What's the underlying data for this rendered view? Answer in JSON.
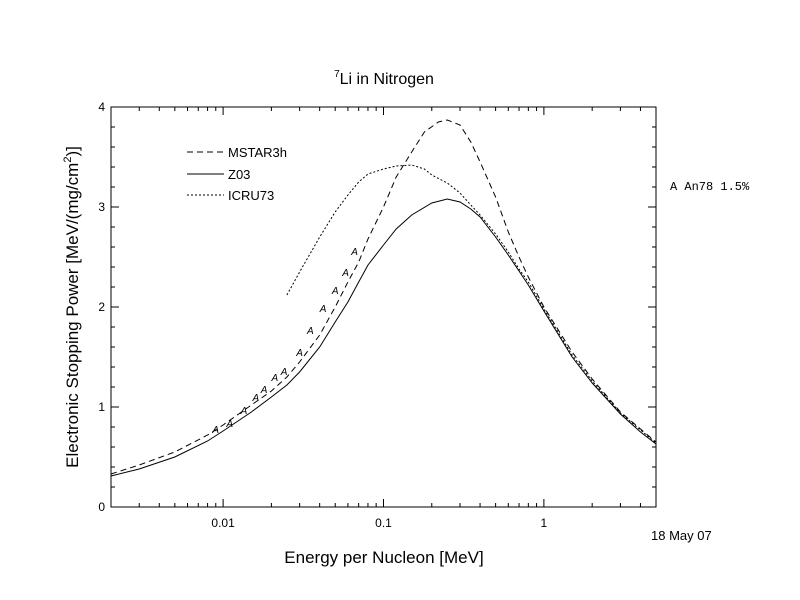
{
  "chart_data": {
    "type": "line",
    "title_sup": "7",
    "title_rest": "Li in Nitrogen",
    "xlabel": "Energy per Nucleon [MeV]",
    "ylabel_main": "Electronic Stopping Power [MeV/(mg/cm",
    "ylabel_sup": "2",
    "ylabel_end": ")]",
    "x_scale": "log",
    "xlim": [
      0.002,
      5.0
    ],
    "ylim": [
      0,
      4
    ],
    "x_ticks": [
      {
        "value": 0.01,
        "label": "0.01"
      },
      {
        "value": 0.1,
        "label": "0.1"
      },
      {
        "value": 1,
        "label": "1"
      }
    ],
    "y_ticks": [
      {
        "value": 0,
        "label": "0"
      },
      {
        "value": 1,
        "label": "1"
      },
      {
        "value": 2,
        "label": "2"
      },
      {
        "value": 3,
        "label": "3"
      },
      {
        "value": 4,
        "label": "4"
      }
    ],
    "grid": false,
    "legend_position": "top-left",
    "series": [
      {
        "name": "MSTAR3h",
        "style": "dashed",
        "points": [
          [
            0.002,
            0.33
          ],
          [
            0.003,
            0.42
          ],
          [
            0.005,
            0.55
          ],
          [
            0.008,
            0.72
          ],
          [
            0.01,
            0.82
          ],
          [
            0.015,
            1.02
          ],
          [
            0.02,
            1.16
          ],
          [
            0.025,
            1.3
          ],
          [
            0.03,
            1.45
          ],
          [
            0.04,
            1.72
          ],
          [
            0.05,
            2.0
          ],
          [
            0.06,
            2.25
          ],
          [
            0.07,
            2.45
          ],
          [
            0.08,
            2.68
          ],
          [
            0.1,
            3.0
          ],
          [
            0.12,
            3.3
          ],
          [
            0.15,
            3.55
          ],
          [
            0.18,
            3.75
          ],
          [
            0.22,
            3.85
          ],
          [
            0.25,
            3.87
          ],
          [
            0.3,
            3.82
          ],
          [
            0.35,
            3.65
          ],
          [
            0.4,
            3.45
          ],
          [
            0.5,
            3.1
          ],
          [
            0.6,
            2.75
          ],
          [
            0.7,
            2.5
          ],
          [
            0.8,
            2.3
          ],
          [
            1.0,
            2.0
          ],
          [
            1.5,
            1.55
          ],
          [
            2.0,
            1.28
          ],
          [
            3.0,
            0.95
          ],
          [
            4.0,
            0.78
          ],
          [
            5.0,
            0.65
          ]
        ]
      },
      {
        "name": "Z03",
        "style": "solid",
        "points": [
          [
            0.002,
            0.31
          ],
          [
            0.003,
            0.38
          ],
          [
            0.005,
            0.5
          ],
          [
            0.008,
            0.66
          ],
          [
            0.01,
            0.76
          ],
          [
            0.015,
            0.95
          ],
          [
            0.02,
            1.1
          ],
          [
            0.025,
            1.22
          ],
          [
            0.03,
            1.35
          ],
          [
            0.04,
            1.6
          ],
          [
            0.05,
            1.85
          ],
          [
            0.06,
            2.05
          ],
          [
            0.07,
            2.25
          ],
          [
            0.08,
            2.42
          ],
          [
            0.1,
            2.62
          ],
          [
            0.12,
            2.78
          ],
          [
            0.15,
            2.92
          ],
          [
            0.2,
            3.04
          ],
          [
            0.25,
            3.08
          ],
          [
            0.3,
            3.05
          ],
          [
            0.35,
            2.98
          ],
          [
            0.4,
            2.9
          ],
          [
            0.5,
            2.7
          ],
          [
            0.6,
            2.52
          ],
          [
            0.7,
            2.36
          ],
          [
            0.8,
            2.22
          ],
          [
            1.0,
            1.96
          ],
          [
            1.5,
            1.5
          ],
          [
            2.0,
            1.24
          ],
          [
            3.0,
            0.93
          ],
          [
            4.0,
            0.75
          ],
          [
            5.0,
            0.63
          ]
        ]
      },
      {
        "name": "ICRU73",
        "style": "dotted",
        "points": [
          [
            0.025,
            2.12
          ],
          [
            0.03,
            2.35
          ],
          [
            0.04,
            2.7
          ],
          [
            0.05,
            2.95
          ],
          [
            0.06,
            3.12
          ],
          [
            0.07,
            3.25
          ],
          [
            0.08,
            3.33
          ],
          [
            0.1,
            3.38
          ],
          [
            0.12,
            3.41
          ],
          [
            0.15,
            3.42
          ],
          [
            0.18,
            3.38
          ],
          [
            0.2,
            3.32
          ],
          [
            0.25,
            3.24
          ],
          [
            0.3,
            3.14
          ],
          [
            0.35,
            3.02
          ],
          [
            0.4,
            2.92
          ],
          [
            0.5,
            2.73
          ],
          [
            0.6,
            2.55
          ],
          [
            0.7,
            2.38
          ],
          [
            0.8,
            2.25
          ],
          [
            1.0,
            1.98
          ],
          [
            1.5,
            1.52
          ],
          [
            2.0,
            1.26
          ],
          [
            3.0,
            0.94
          ],
          [
            4.0,
            0.77
          ],
          [
            5.0,
            0.64
          ]
        ]
      }
    ],
    "markers": {
      "name": "An78 1.5%",
      "symbol": "A",
      "points": [
        [
          0.009,
          0.78
        ],
        [
          0.011,
          0.84
        ],
        [
          0.0135,
          0.97
        ],
        [
          0.016,
          1.1
        ],
        [
          0.018,
          1.18
        ],
        [
          0.021,
          1.3
        ],
        [
          0.024,
          1.36
        ],
        [
          0.03,
          1.55
        ],
        [
          0.035,
          1.77
        ],
        [
          0.042,
          1.99
        ],
        [
          0.05,
          2.17
        ],
        [
          0.058,
          2.35
        ],
        [
          0.066,
          2.56
        ]
      ]
    },
    "annotation": "A An78 1.5%",
    "date_text": "18 May 07"
  }
}
